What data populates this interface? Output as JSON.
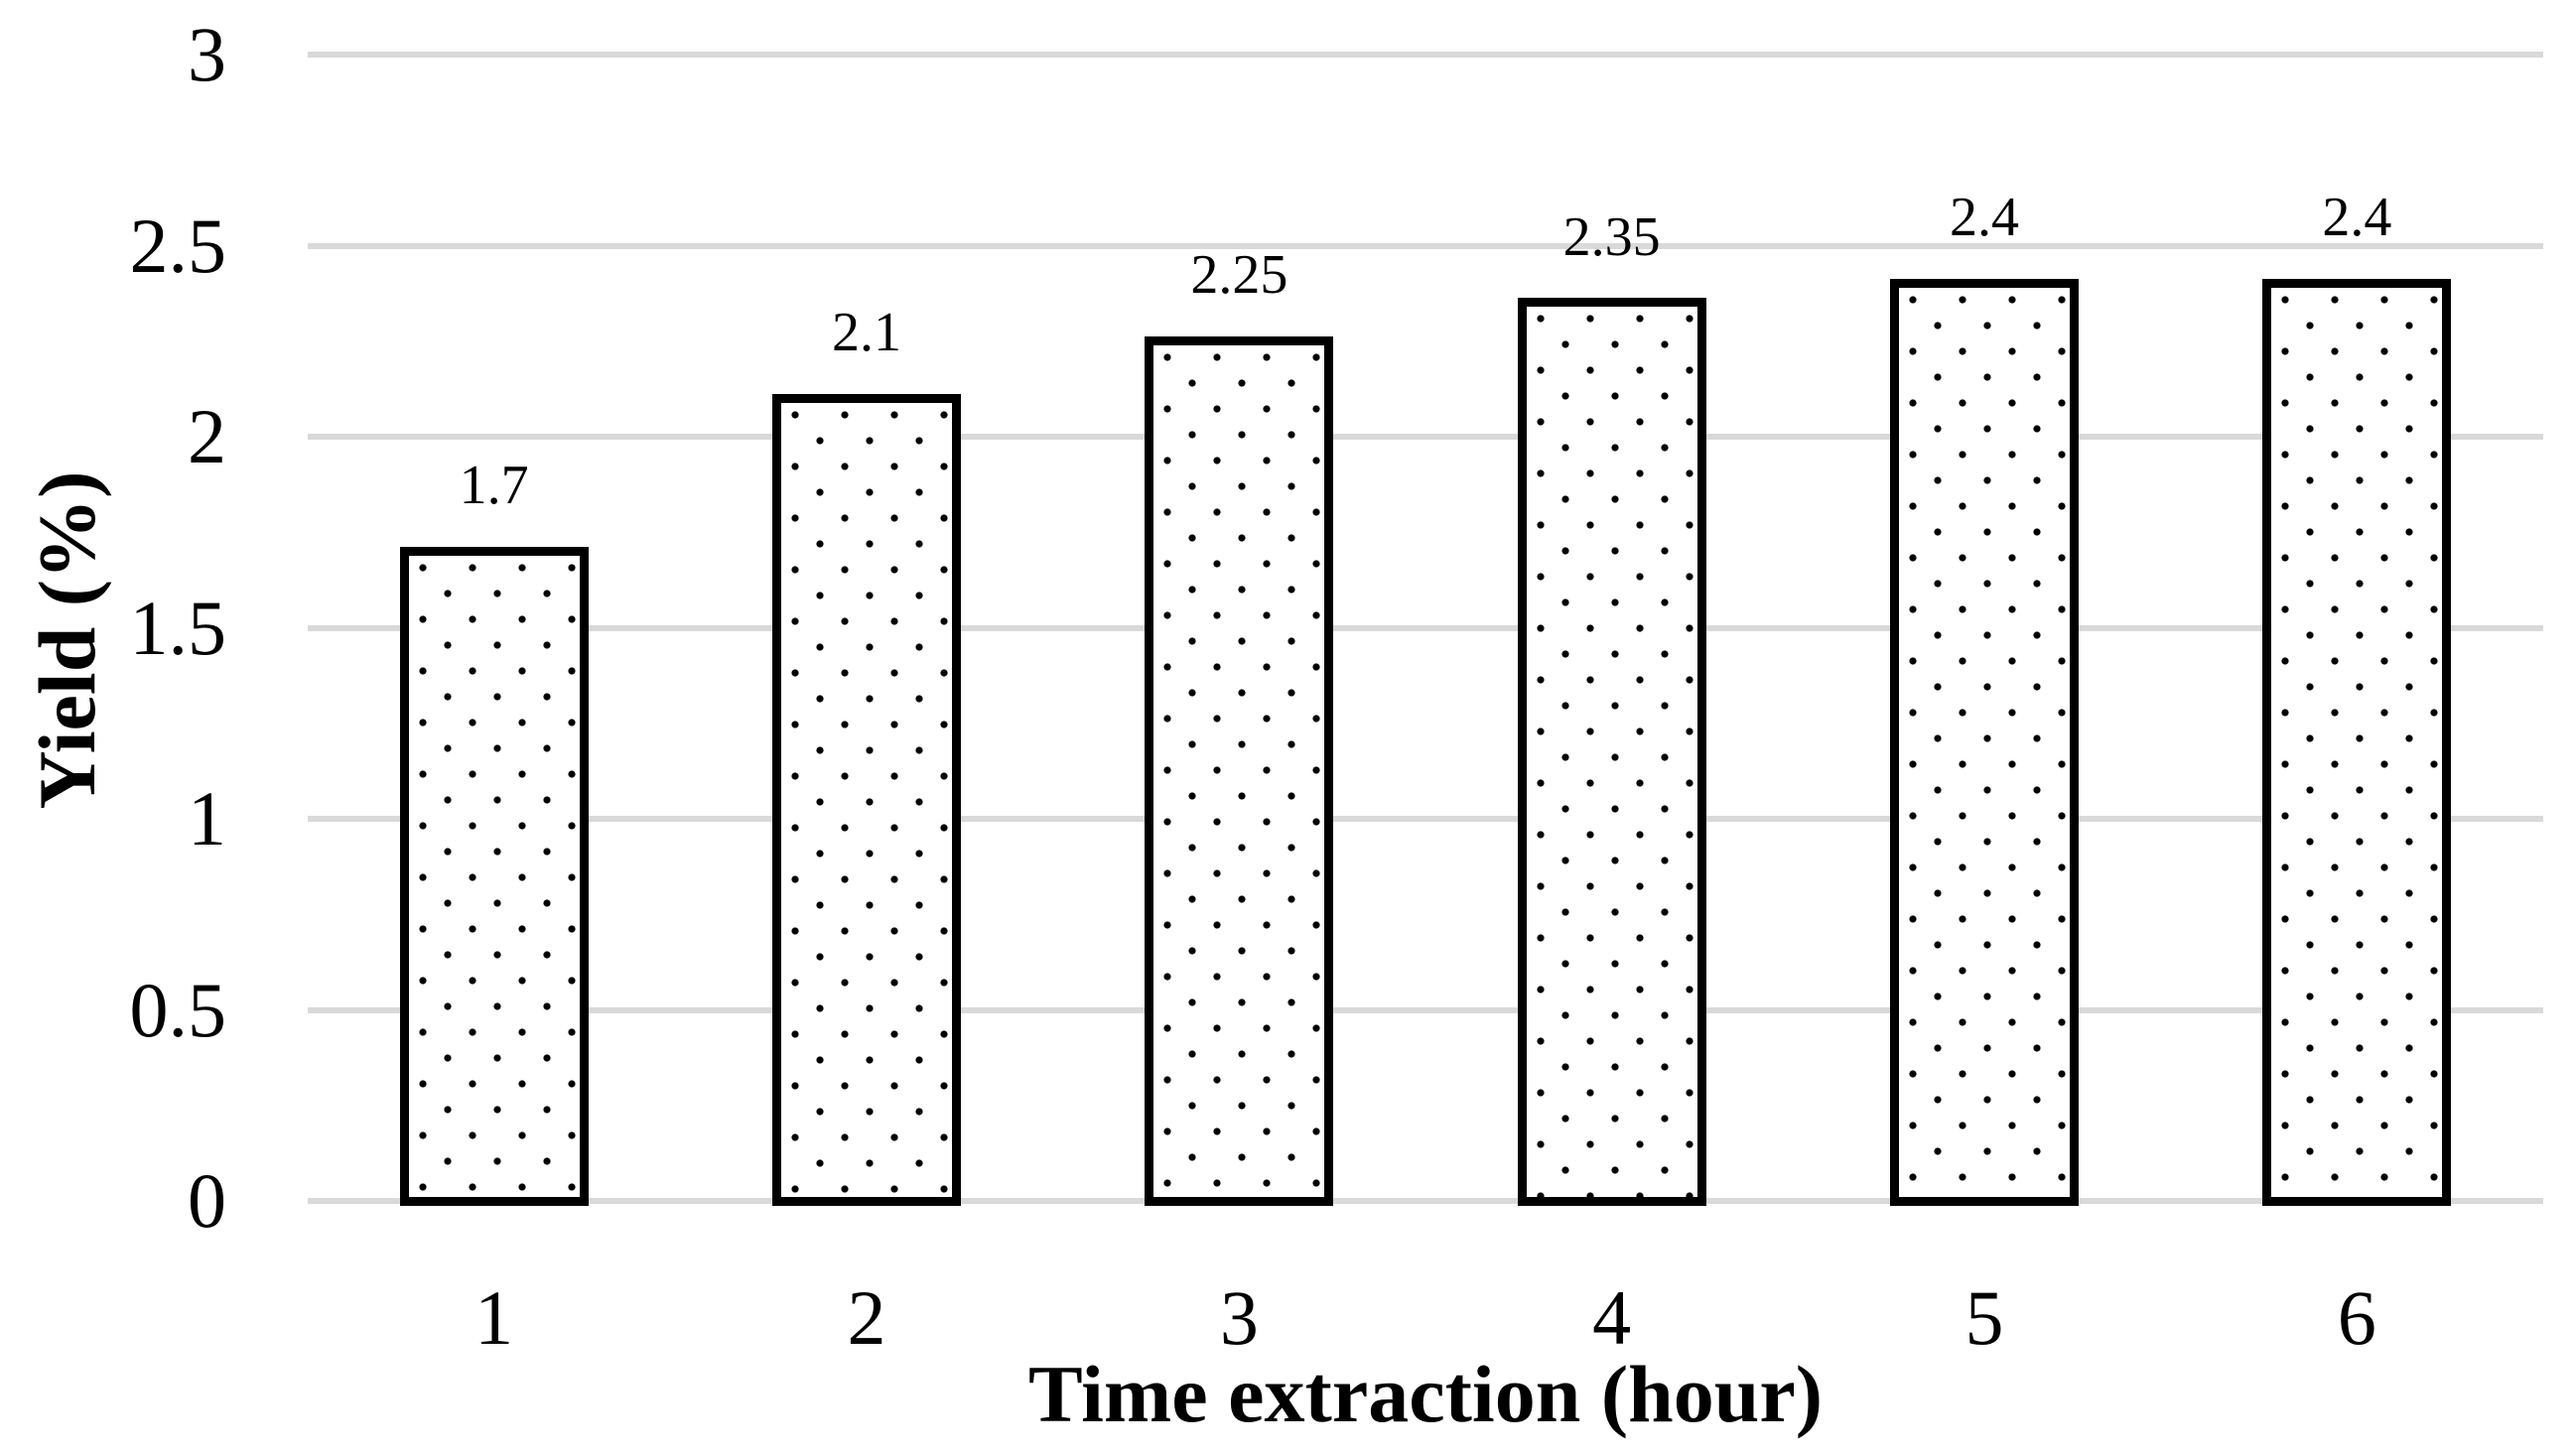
{
  "figure": {
    "background_color": "#ffffff",
    "text_color": "#000000"
  },
  "chart_data": {
    "type": "bar",
    "title": "",
    "categories": [
      "1",
      "2",
      "3",
      "4",
      "5",
      "6"
    ],
    "values": [
      1.7,
      2.1,
      2.25,
      2.35,
      2.4,
      2.4
    ],
    "data_labels": [
      "1.7",
      "2.1",
      "2.25",
      "2.35",
      "2.4",
      "2.4"
    ],
    "xlabel": "Time extraction (hour)",
    "ylabel": "Yield (%)",
    "ylim": [
      0,
      3
    ],
    "ytick_step": 0.5,
    "yticks": [
      {
        "v": 3,
        "label": "3"
      },
      {
        "v": 2.5,
        "label": "2.5"
      },
      {
        "v": 2,
        "label": "2"
      },
      {
        "v": 1.5,
        "label": "1.5"
      },
      {
        "v": 1,
        "label": "1"
      },
      {
        "v": 0.5,
        "label": "0.5"
      },
      {
        "v": 0,
        "label": "0"
      }
    ],
    "grid": "horizontal",
    "legend": "none",
    "style": {
      "bar_fill": "#ffffff",
      "bar_pattern": "small-black-dots",
      "bar_border_color": "#000000",
      "gridline_color": "#d9d9d9",
      "label_color": "#000000"
    }
  }
}
